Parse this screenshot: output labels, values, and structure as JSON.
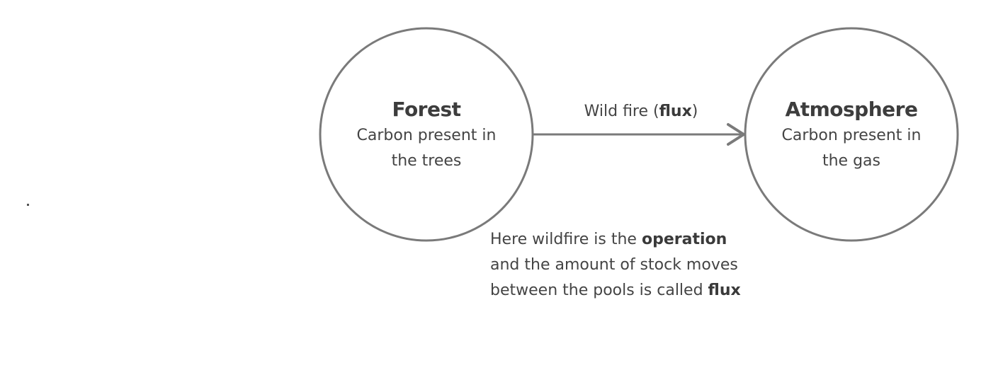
{
  "nodes": {
    "forest": {
      "title": "Forest",
      "desc_line1": "Carbon present in",
      "desc_line2": "the trees"
    },
    "atmosphere": {
      "title": "Atmosphere",
      "desc_line1": "Carbon present in",
      "desc_line2": "the gas"
    }
  },
  "edge": {
    "label_prefix": "Wild fire (",
    "label_bold": "flux",
    "label_suffix": ")"
  },
  "note": {
    "line1_prefix": "Here wildfire is the ",
    "line1_bold": "operation",
    "line2": "and the amount of stock moves",
    "line3_prefix": "between the pools is called ",
    "line3_bold": "flux"
  },
  "colors": {
    "stroke": "#7a7a7a",
    "text": "#444444"
  }
}
